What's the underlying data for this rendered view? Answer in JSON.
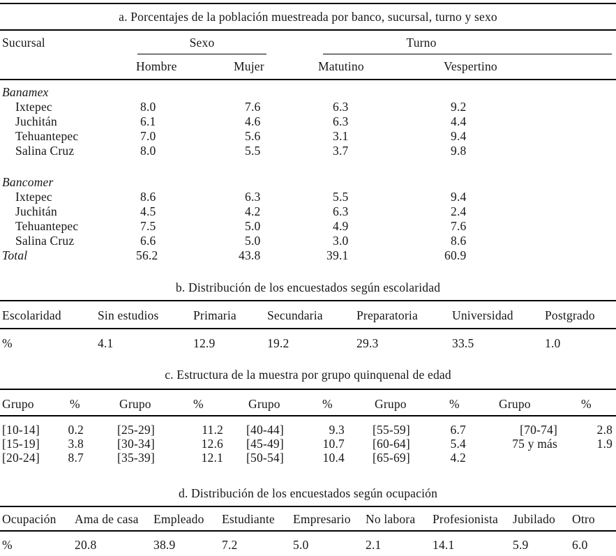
{
  "page": {
    "background": "#ffffff",
    "text_color": "#161616",
    "rule_color": "#000000"
  },
  "table_a": {
    "title": "a. Porcentajes de la población muestreada por banco, sucursal, turno y sexo",
    "col_sucursal": "Sucursal",
    "group_headers": [
      {
        "label": "Sexo"
      },
      {
        "label": "Turno"
      }
    ],
    "sub_headers": [
      "Hombre",
      "Mujer",
      "Matutino",
      "Vespertino"
    ],
    "sections": [
      {
        "name": "Banamex",
        "rows": [
          {
            "label": "Ixtepec",
            "values": [
              "8.0",
              "7.6",
              "6.3",
              "9.2"
            ]
          },
          {
            "label": "Juchitán",
            "values": [
              "6.1",
              "4.6",
              "6.3",
              "4.4"
            ]
          },
          {
            "label": "Tehuantepec",
            "values": [
              "7.0",
              "5.6",
              "3.1",
              "9.4"
            ]
          },
          {
            "label": "Salina Cruz",
            "values": [
              "8.0",
              "5.5",
              "3.7",
              "9.8"
            ]
          }
        ]
      },
      {
        "name": "Bancomer",
        "rows": [
          {
            "label": "Ixtepec",
            "values": [
              "8.6",
              "6.3",
              "5.5",
              "9.4"
            ]
          },
          {
            "label": "Juchitán",
            "values": [
              "4.5",
              "4.2",
              "6.3",
              "2.4"
            ]
          },
          {
            "label": "Tehuantepec",
            "values": [
              "7.5",
              "5.0",
              "4.9",
              "7.6"
            ]
          },
          {
            "label": "Salina Cruz",
            "values": [
              "6.6",
              "5.0",
              "3.0",
              "8.6"
            ]
          }
        ]
      }
    ],
    "total": {
      "label": "Total",
      "values": [
        "56.2",
        "43.8",
        "39.1",
        "60.9"
      ]
    }
  },
  "table_b": {
    "title": "b. Distribución de los encuestados según escolaridad",
    "headers": [
      "Escolaridad",
      "Sin estudios",
      "Primaria",
      "Secundaria",
      "Preparatoria",
      "Universidad",
      "Postgrado"
    ],
    "row_label": "%",
    "values": [
      "4.1",
      "12.9",
      "19.2",
      "29.3",
      "33.5",
      "1.0"
    ]
  },
  "table_c": {
    "title": "c. Estructura de la muestra por grupo quinquenal de edad",
    "header_pair": [
      "Grupo",
      "%"
    ],
    "rows": [
      [
        [
          "[10-14]",
          "0.2"
        ],
        [
          "[25-29]",
          "11.2"
        ],
        [
          "[40-44]",
          "9.3"
        ],
        [
          "[55-59]",
          "6.7"
        ],
        [
          "[70-74]",
          "2.8"
        ]
      ],
      [
        [
          "[15-19]",
          "3.8"
        ],
        [
          "[30-34]",
          "12.6"
        ],
        [
          "[45-49]",
          "10.7"
        ],
        [
          "[60-64]",
          "5.4"
        ],
        [
          "75 y más",
          "1.9"
        ]
      ],
      [
        [
          "[20-24]",
          "8.7"
        ],
        [
          "[35-39]",
          "12.1"
        ],
        [
          "[50-54]",
          "10.4"
        ],
        [
          "[65-69]",
          "4.2"
        ],
        [
          "",
          ""
        ]
      ]
    ]
  },
  "table_d": {
    "title": "d. Distribución de los encuestados según ocupación",
    "headers": [
      "Ocupación",
      "Ama de casa",
      "Empleado",
      "Estudiante",
      "Empresario",
      "No labora",
      "Profesionista",
      "Jubilado",
      "Otro"
    ],
    "row_label": "%",
    "values": [
      "20.8",
      "38.9",
      "7.2",
      "5.0",
      "2.1",
      "14.1",
      "5.9",
      "6.0"
    ]
  }
}
